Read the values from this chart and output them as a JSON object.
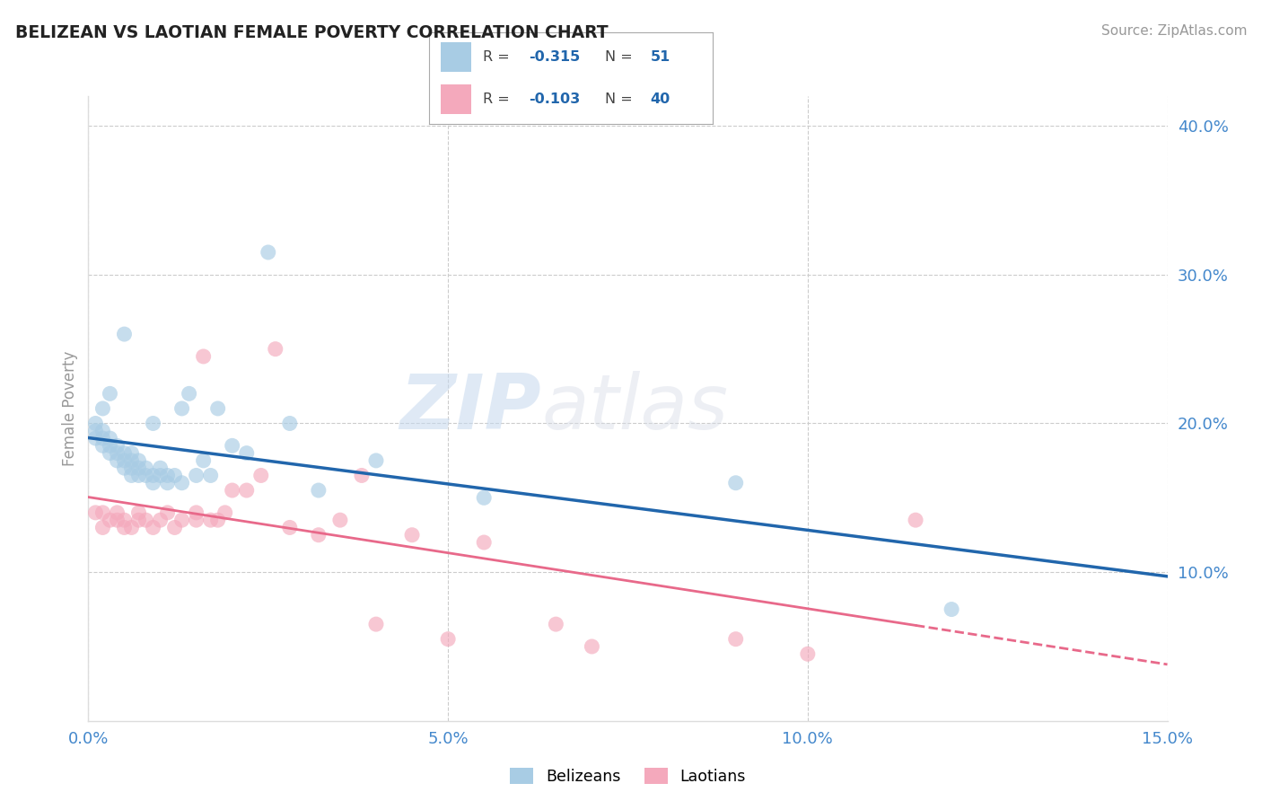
{
  "title": "BELIZEAN VS LAOTIAN FEMALE POVERTY CORRELATION CHART",
  "source": "Source: ZipAtlas.com",
  "ylabel": "Female Poverty",
  "xlim": [
    0.0,
    0.15
  ],
  "ylim": [
    0.0,
    0.42
  ],
  "x_ticks": [
    0.0,
    0.05,
    0.1,
    0.15
  ],
  "x_tick_labels": [
    "0.0%",
    "5.0%",
    "10.0%",
    "15.0%"
  ],
  "y_ticks_right": [
    0.1,
    0.2,
    0.3,
    0.4
  ],
  "y_tick_labels_right": [
    "10.0%",
    "20.0%",
    "30.0%",
    "40.0%"
  ],
  "watermark_zip": "ZIP",
  "watermark_atlas": "atlas",
  "legend_r1": "-0.315",
  "legend_n1": "51",
  "legend_r2": "-0.103",
  "legend_n2": "40",
  "belizean_color": "#a8cce4",
  "laotian_color": "#f4a9bc",
  "belizean_line_color": "#2166ac",
  "laotian_line_color": "#e8698a",
  "belizean_x": [
    0.001,
    0.001,
    0.001,
    0.002,
    0.002,
    0.002,
    0.002,
    0.003,
    0.003,
    0.003,
    0.003,
    0.004,
    0.004,
    0.004,
    0.005,
    0.005,
    0.005,
    0.005,
    0.006,
    0.006,
    0.006,
    0.006,
    0.007,
    0.007,
    0.007,
    0.008,
    0.008,
    0.009,
    0.009,
    0.009,
    0.01,
    0.01,
    0.011,
    0.011,
    0.012,
    0.013,
    0.013,
    0.014,
    0.015,
    0.016,
    0.017,
    0.018,
    0.02,
    0.022,
    0.025,
    0.028,
    0.032,
    0.04,
    0.055,
    0.09,
    0.12
  ],
  "belizean_y": [
    0.19,
    0.195,
    0.2,
    0.185,
    0.19,
    0.195,
    0.21,
    0.18,
    0.185,
    0.19,
    0.22,
    0.175,
    0.18,
    0.185,
    0.17,
    0.175,
    0.18,
    0.26,
    0.165,
    0.17,
    0.175,
    0.18,
    0.165,
    0.17,
    0.175,
    0.165,
    0.17,
    0.16,
    0.165,
    0.2,
    0.165,
    0.17,
    0.16,
    0.165,
    0.165,
    0.16,
    0.21,
    0.22,
    0.165,
    0.175,
    0.165,
    0.21,
    0.185,
    0.18,
    0.315,
    0.2,
    0.155,
    0.175,
    0.15,
    0.16,
    0.075
  ],
  "laotian_x": [
    0.001,
    0.002,
    0.002,
    0.003,
    0.004,
    0.004,
    0.005,
    0.005,
    0.006,
    0.007,
    0.007,
    0.008,
    0.009,
    0.01,
    0.011,
    0.012,
    0.013,
    0.015,
    0.015,
    0.016,
    0.017,
    0.018,
    0.019,
    0.02,
    0.022,
    0.024,
    0.026,
    0.028,
    0.032,
    0.035,
    0.038,
    0.04,
    0.045,
    0.05,
    0.055,
    0.065,
    0.07,
    0.09,
    0.1,
    0.115
  ],
  "laotian_y": [
    0.14,
    0.13,
    0.14,
    0.135,
    0.135,
    0.14,
    0.13,
    0.135,
    0.13,
    0.135,
    0.14,
    0.135,
    0.13,
    0.135,
    0.14,
    0.13,
    0.135,
    0.135,
    0.14,
    0.245,
    0.135,
    0.135,
    0.14,
    0.155,
    0.155,
    0.165,
    0.25,
    0.13,
    0.125,
    0.135,
    0.165,
    0.065,
    0.125,
    0.055,
    0.12,
    0.065,
    0.05,
    0.055,
    0.045,
    0.135
  ],
  "background_color": "#ffffff",
  "grid_color": "#cccccc",
  "title_color": "#222222",
  "axis_label_color": "#999999",
  "tick_color": "#4488cc"
}
